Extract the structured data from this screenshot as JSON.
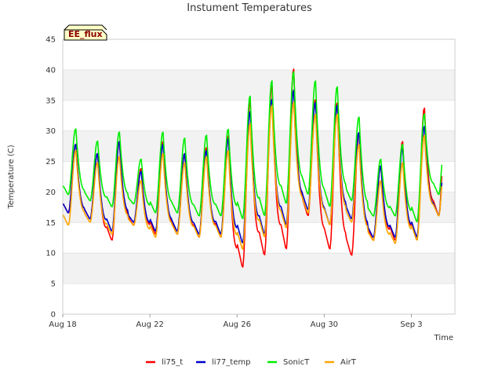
{
  "chart_data": {
    "type": "line",
    "title": "Instument Temperatures",
    "xlabel": "Time",
    "ylabel": "Temperature (C)",
    "badge": "EE_flux",
    "ylim": [
      0,
      45
    ],
    "xlim": [
      "2023-08-18",
      "2023-09-05"
    ],
    "yticks": [
      0,
      5,
      10,
      15,
      20,
      25,
      30,
      35,
      40,
      45
    ],
    "xticks": [
      {
        "date": "2023-08-18",
        "label": "Aug 18"
      },
      {
        "date": "2023-08-22",
        "label": "Aug 22"
      },
      {
        "date": "2023-08-26",
        "label": "Aug 26"
      },
      {
        "date": "2023-08-30",
        "label": "Aug 30"
      },
      {
        "date": "2023-09-03",
        "label": "Sep 3"
      }
    ],
    "grid": true,
    "legend_position": "bottom",
    "series": [
      {
        "name": "li75_t",
        "color": "#ff0000",
        "dates": [
          "2023-08-18",
          "2023-08-19",
          "2023-08-20",
          "2023-08-21",
          "2023-08-22",
          "2023-08-23",
          "2023-08-24",
          "2023-08-25",
          "2023-08-26",
          "2023-08-27",
          "2023-08-28",
          "2023-08-29",
          "2023-08-30",
          "2023-08-31",
          "2023-09-01",
          "2023-09-02",
          "2023-09-03",
          "2023-09-04"
        ],
        "min": [
          16.5,
          15.5,
          12.0,
          14.5,
          13.0,
          13.0,
          12.5,
          12.5,
          7.5,
          9.5,
          10.5,
          16.0,
          10.5,
          9.5,
          12.0,
          12.0,
          12.0,
          16.0
        ],
        "max": [
          28.0,
          26.5,
          28.5,
          24.0,
          28.5,
          26.5,
          27.5,
          29.5,
          35.5,
          38.0,
          40.5,
          35.5,
          35.0,
          30.0,
          24.5,
          28.5,
          34.0,
          34.0
        ]
      },
      {
        "name": "li77_temp",
        "color": "#0000cc",
        "dates": [
          "2023-08-18",
          "2023-08-19",
          "2023-08-20",
          "2023-08-21",
          "2023-08-22",
          "2023-08-23",
          "2023-08-24",
          "2023-08-25",
          "2023-08-26",
          "2023-08-27",
          "2023-08-28",
          "2023-08-29",
          "2023-08-30",
          "2023-08-31",
          "2023-09-01",
          "2023-09-02",
          "2023-09-03",
          "2023-09-04"
        ],
        "min": [
          16.5,
          15.5,
          13.5,
          15.0,
          13.5,
          13.5,
          13.0,
          13.0,
          11.5,
          13.0,
          14.5,
          17.0,
          14.5,
          15.5,
          12.5,
          12.5,
          12.5,
          16.0
        ],
        "max": [
          28.0,
          26.5,
          28.5,
          23.5,
          28.0,
          26.5,
          27.0,
          29.0,
          33.5,
          35.5,
          37.0,
          35.0,
          34.5,
          30.0,
          24.5,
          27.5,
          31.0,
          31.0
        ]
      },
      {
        "name": "SonicT",
        "color": "#00ee00",
        "dates": [
          "2023-08-18",
          "2023-08-19",
          "2023-08-20",
          "2023-08-21",
          "2023-08-22",
          "2023-08-23",
          "2023-08-24",
          "2023-08-25",
          "2023-08-26",
          "2023-08-27",
          "2023-08-28",
          "2023-08-29",
          "2023-08-30",
          "2023-08-31",
          "2023-09-01",
          "2023-09-02",
          "2023-09-03",
          "2023-09-04"
        ],
        "min": [
          19.5,
          18.5,
          17.5,
          18.0,
          16.5,
          16.5,
          16.0,
          16.0,
          15.5,
          16.0,
          18.0,
          19.5,
          17.5,
          18.5,
          16.0,
          16.0,
          15.0,
          19.5
        ],
        "max": [
          30.5,
          28.5,
          30.0,
          25.5,
          30.0,
          29.0,
          29.5,
          30.5,
          36.0,
          38.5,
          40.0,
          38.5,
          37.5,
          32.5,
          25.5,
          28.0,
          33.0,
          33.0
        ]
      },
      {
        "name": "AirT",
        "color": "#ffa500",
        "dates": [
          "2023-08-18",
          "2023-08-19",
          "2023-08-20",
          "2023-08-21",
          "2023-08-22",
          "2023-08-23",
          "2023-08-24",
          "2023-08-25",
          "2023-08-26",
          "2023-08-27",
          "2023-08-28",
          "2023-08-29",
          "2023-08-30",
          "2023-08-31",
          "2023-09-01",
          "2023-09-02",
          "2023-09-03",
          "2023-09-04"
        ],
        "min": [
          14.5,
          15.0,
          13.0,
          14.5,
          12.5,
          13.0,
          12.5,
          12.5,
          10.5,
          12.5,
          14.0,
          16.5,
          14.5,
          15.0,
          12.0,
          11.5,
          12.0,
          16.0
        ],
        "max": [
          27.0,
          25.0,
          26.0,
          22.0,
          26.5,
          25.0,
          26.0,
          27.0,
          31.5,
          34.5,
          35.0,
          33.0,
          33.0,
          28.0,
          22.0,
          25.0,
          29.5,
          29.5
        ]
      }
    ],
    "end_date": "2023-09-04"
  }
}
